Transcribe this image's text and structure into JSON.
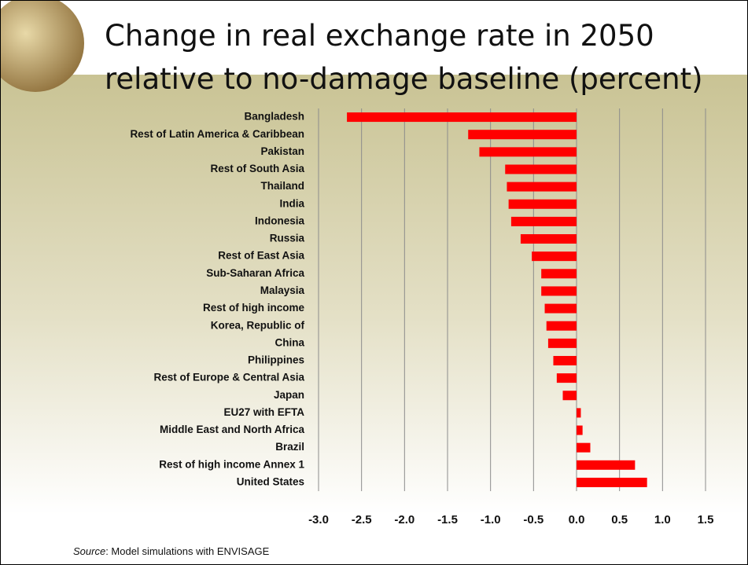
{
  "chart_data": {
    "type": "bar",
    "orientation": "horizontal",
    "title": "Change in real exchange rate in 2050 relative to no-damage baseline (percent)",
    "categories": [
      "Bangladesh",
      "Rest of Latin America & Caribbean",
      "Pakistan",
      "Rest of South Asia",
      "Thailand",
      "India",
      "Indonesia",
      "Russia",
      "Rest of East Asia",
      "Sub-Saharan Africa",
      "Malaysia",
      "Rest of high income",
      "Korea, Republic of",
      "China",
      "Philippines",
      "Rest of Europe & Central Asia",
      "Japan",
      "EU27 with EFTA",
      "Middle East and North Africa",
      "Brazil",
      "Rest of high income Annex 1",
      "United States"
    ],
    "values": [
      -2.67,
      -1.26,
      -1.13,
      -0.83,
      -0.81,
      -0.79,
      -0.76,
      -0.65,
      -0.52,
      -0.41,
      -0.41,
      -0.37,
      -0.35,
      -0.33,
      -0.27,
      -0.23,
      -0.16,
      0.05,
      0.07,
      0.16,
      0.68,
      0.82
    ],
    "color": "#ff0000",
    "xlim": [
      -3,
      1.5
    ],
    "xticks": [
      {
        "value": -3,
        "label": "-3.0"
      },
      -2.5,
      {
        "value": -2,
        "label": "-2.0"
      },
      -1.5,
      {
        "value": -1,
        "label": "-1.0"
      },
      -0.5,
      {
        "value": 0,
        "label": "0.0"
      },
      0.5,
      {
        "value": 1,
        "label": "1.0"
      },
      1.5
    ],
    "grid": true,
    "source": {
      "label": "Source",
      "text": ": Model simulations with ENVISAGE"
    }
  }
}
